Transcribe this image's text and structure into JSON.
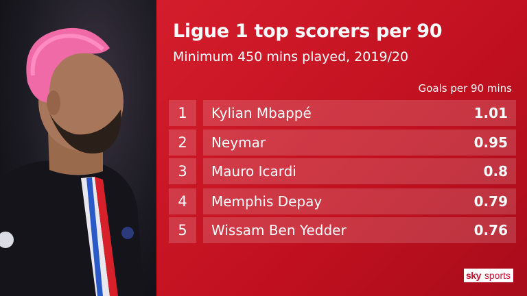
{
  "chart_data": {
    "type": "table",
    "title": "Ligue 1 top scorers per 90",
    "subtitle": "Minimum 450 mins played, 2019/20",
    "column_header": "Goals per 90 mins",
    "rows": [
      {
        "rank": "1",
        "name": "Kylian Mbappé",
        "value": "1.01"
      },
      {
        "rank": "2",
        "name": "Neymar",
        "value": "0.95"
      },
      {
        "rank": "3",
        "name": "Mauro Icardi",
        "value": "0.8"
      },
      {
        "rank": "4",
        "name": "Memphis Depay",
        "value": "0.79"
      },
      {
        "rank": "5",
        "name": "Wissam Ben Yedder",
        "value": "0.76"
      }
    ]
  },
  "logo": {
    "sky": "sky",
    "sports": "sports"
  },
  "colors": {
    "background": "#c8102e",
    "text": "#ffffff"
  }
}
